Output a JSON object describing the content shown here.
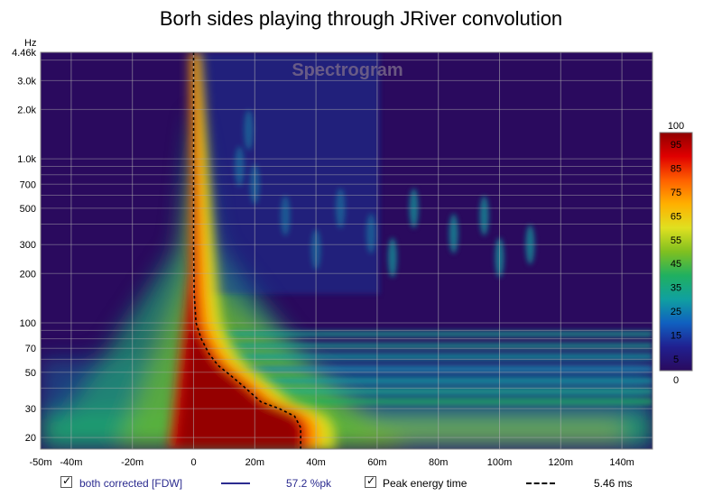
{
  "chart_data": {
    "type": "heatmap",
    "title": "Borh sides playing through JRiver convolution",
    "watermark": "Spectrogram",
    "yaxis_unit": "Hz",
    "x_tick_labels": [
      "-50m",
      "-40m",
      "-20m",
      "0",
      "20m",
      "40m",
      "60m",
      "80m",
      "100m",
      "120m",
      "140m"
    ],
    "x_ticks_ms": [
      -50,
      -40,
      -20,
      0,
      20,
      40,
      60,
      80,
      100,
      120,
      140
    ],
    "xlim_ms": [
      -50,
      150
    ],
    "y_tick_labels": [
      "4.46k",
      "3.0k",
      "2.0k",
      "1.0k",
      "700",
      "500",
      "300",
      "200",
      "100",
      "70",
      "50",
      "30",
      "20"
    ],
    "y_ticks_hz": [
      4460,
      3000,
      2000,
      1000,
      700,
      500,
      300,
      200,
      100,
      70,
      50,
      30,
      20
    ],
    "ylim_hz": [
      17,
      4460
    ],
    "y_scale": "log",
    "colorbar": {
      "range": [
        0,
        100
      ],
      "top_label": "100",
      "bottom_label": "0",
      "tick_labels": [
        "95",
        "85",
        "75",
        "65",
        "55",
        "45",
        "35",
        "25",
        "15",
        "5"
      ],
      "ticks": [
        95,
        85,
        75,
        65,
        55,
        45,
        35,
        25,
        15,
        5
      ],
      "stops": [
        "#2a0a5e",
        "#202090",
        "#1060c0",
        "#10a0a0",
        "#20b060",
        "#80c020",
        "#e0e020",
        "#ffb000",
        "#ff6000",
        "#e00000",
        "#900000"
      ]
    },
    "peak_energy_curve": [
      {
        "hz": 4460,
        "ms": 0
      },
      {
        "hz": 1000,
        "ms": 0
      },
      {
        "hz": 300,
        "ms": 0
      },
      {
        "hz": 150,
        "ms": 0.2
      },
      {
        "hz": 100,
        "ms": 0.8
      },
      {
        "hz": 80,
        "ms": 2.5
      },
      {
        "hz": 65,
        "ms": 5
      },
      {
        "hz": 55,
        "ms": 8
      },
      {
        "hz": 48,
        "ms": 12
      },
      {
        "hz": 40,
        "ms": 17
      },
      {
        "hz": 33,
        "ms": 22
      },
      {
        "hz": 30,
        "ms": 28
      },
      {
        "hz": 27,
        "ms": 33
      },
      {
        "hz": 23,
        "ms": 35
      },
      {
        "hz": 17,
        "ms": 35
      }
    ],
    "grid": true,
    "legend_position": "bottom"
  },
  "legend": {
    "series1_label": "both corrected [FDW]",
    "series1_value": "57.2 %pk",
    "series1_color": "#2b2b8f",
    "series2_label": "Peak energy time",
    "series2_value": "5.46 ms",
    "series2_color": "#000000"
  }
}
